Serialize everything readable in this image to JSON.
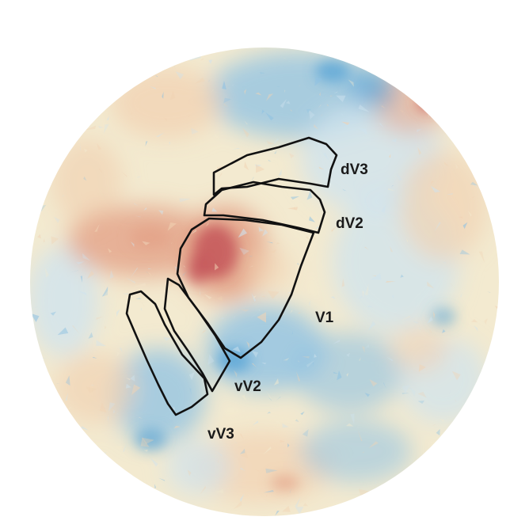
{
  "figure": {
    "labels": {
      "dv3": "dV3",
      "dv2": "dV2",
      "v1": "V1",
      "vv2": "vV2",
      "vv3": "vV3"
    },
    "colors": {
      "background_base": "#f3ead0",
      "cool_light": "#cfe3ee",
      "cool": "#8fc2e3",
      "cool_strong": "#4f9fd6",
      "warm_light": "#f1d3b4",
      "warm": "#e3a388",
      "warm_strong": "#c4555a",
      "outline": "#111111"
    }
  }
}
